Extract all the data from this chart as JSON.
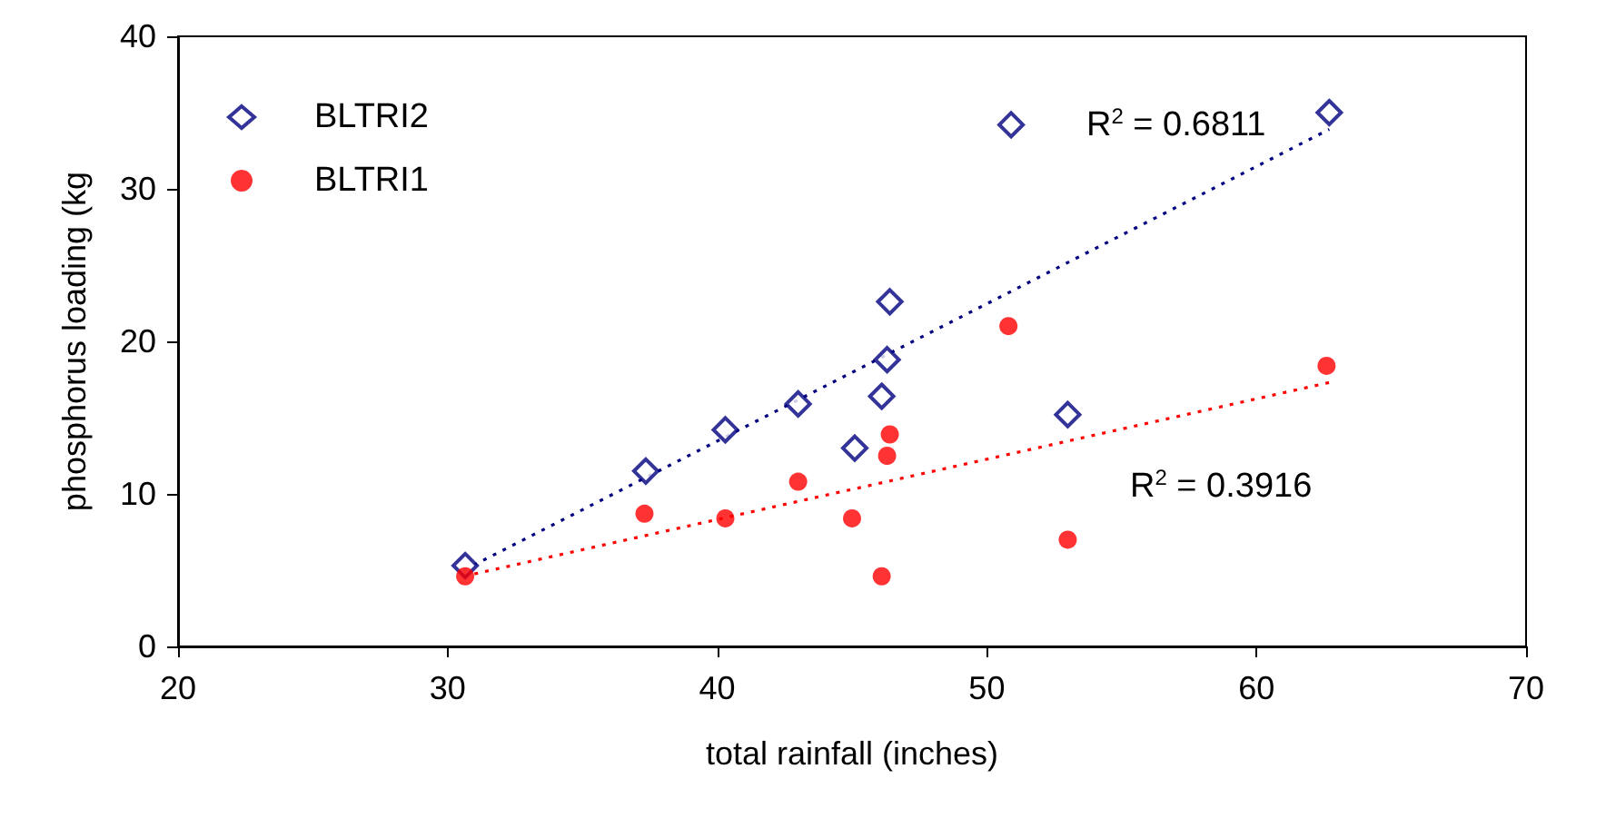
{
  "chart_data": {
    "type": "scatter",
    "xlabel": "total rainfall (inches)",
    "ylabel": "phosphorus loading (kg",
    "xlim": [
      20,
      70
    ],
    "xticks": [
      20,
      30,
      40,
      50,
      60,
      70
    ],
    "ylim": [
      0,
      40
    ],
    "yticks": [
      0,
      10,
      20,
      30,
      40
    ],
    "grid": false,
    "legend": "top left",
    "series": [
      {
        "name": "BLTRI2",
        "color": "#000080",
        "marker": "diamond",
        "x": [
          30.65,
          37.35,
          40.3,
          43.0,
          45.1,
          46.1,
          46.3,
          46.4,
          50.9,
          53.0,
          62.7
        ],
        "values": [
          5.3,
          11.5,
          14.2,
          15.9,
          13.0,
          16.4,
          18.8,
          22.6,
          34.2,
          15.2,
          35.0
        ]
      },
      {
        "name": "BLTRI1",
        "color": "#ff0000",
        "marker": "circle",
        "x": [
          30.65,
          37.3,
          40.3,
          43.0,
          45.0,
          46.1,
          46.3,
          46.4,
          50.8,
          53.0,
          62.6
        ],
        "values": [
          4.6,
          8.7,
          8.4,
          10.8,
          8.4,
          4.6,
          12.5,
          13.9,
          21.0,
          7.0,
          18.4
        ]
      },
      {
        "type": "line",
        "color": "#000080",
        "line_style": "dotted",
        "marker": "none",
        "x": [
          30.6,
          62.7
        ],
        "values": [
          5.0,
          33.9
        ]
      },
      {
        "type": "line",
        "color": "#ff0000",
        "line_style": "dotted",
        "marker": "none",
        "x": [
          30.6,
          62.7
        ],
        "values": [
          4.6,
          17.3
        ]
      }
    ],
    "annotations": [
      "R$^{2}$ = 0.6811",
      "R$^{2}$ = 0.3916"
    ]
  }
}
